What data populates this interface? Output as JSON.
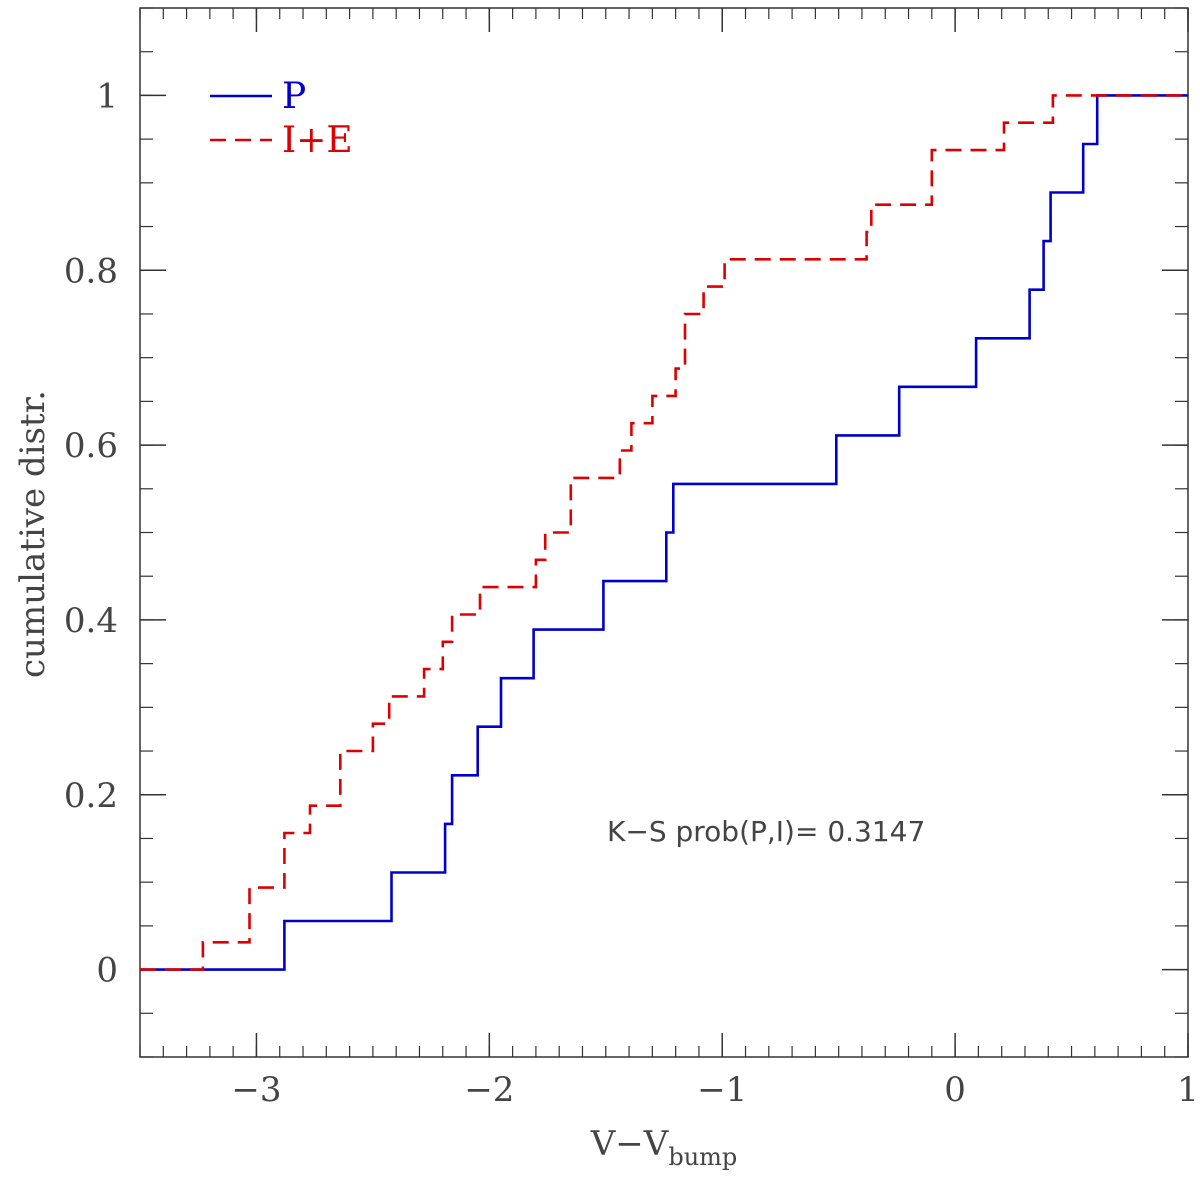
{
  "chart_data": {
    "type": "line",
    "step": true,
    "title": "",
    "xlabel": {
      "main": "V−V",
      "sub": "bump"
    },
    "ylabel": "cumulative distr.",
    "xlim": [
      -3.5,
      1
    ],
    "ylim": [
      -0.1,
      1.1
    ],
    "xticks": [
      {
        "value": -3,
        "label": "−3"
      },
      {
        "value": -2,
        "label": "−2"
      },
      {
        "value": -1,
        "label": "−1"
      },
      {
        "value": 0,
        "label": "0"
      },
      {
        "value": 1,
        "label": "1"
      }
    ],
    "yticks": [
      {
        "value": 0,
        "label": "0"
      },
      {
        "value": 0.2,
        "label": "0.2"
      },
      {
        "value": 0.4,
        "label": "0.4"
      },
      {
        "value": 0.6,
        "label": "0.6"
      },
      {
        "value": 0.8,
        "label": "0.8"
      },
      {
        "value": 1,
        "label": "1"
      }
    ],
    "xminor_step": 0.1,
    "yminor_step": 0.05,
    "grid": false,
    "legend_position": "top-left",
    "annotation": "K−S prob(P,I)= 0.3147",
    "series": [
      {
        "name": "P",
        "color": "#0000cc",
        "dash": "solid",
        "x": [
          -3.5,
          -2.88,
          -2.88,
          -2.42,
          -2.42,
          -2.19,
          -2.19,
          -2.16,
          -2.16,
          -2.05,
          -2.05,
          -1.95,
          -1.95,
          -1.81,
          -1.81,
          -1.51,
          -1.51,
          -1.24,
          -1.24,
          -1.21,
          -1.21,
          -0.51,
          -0.51,
          -0.24,
          -0.24,
          0.09,
          0.09,
          0.32,
          0.32,
          0.38,
          0.38,
          0.41,
          0.41,
          0.55,
          0.55,
          0.61,
          0.61,
          1.0
        ],
        "y": [
          0,
          0,
          0.0556,
          0.0556,
          0.1111,
          0.1111,
          0.1667,
          0.1667,
          0.2222,
          0.2222,
          0.2778,
          0.2778,
          0.3333,
          0.3333,
          0.3889,
          0.3889,
          0.4444,
          0.4444,
          0.5,
          0.5,
          0.5556,
          0.5556,
          0.6111,
          0.6111,
          0.6667,
          0.6667,
          0.7222,
          0.7222,
          0.7778,
          0.7778,
          0.8333,
          0.8333,
          0.8889,
          0.8889,
          0.9444,
          0.9444,
          1.0,
          1.0
        ]
      },
      {
        "name": "I+E",
        "color": "#dd0000",
        "dash": "dashed",
        "x": [
          -3.5,
          -3.23,
          -3.23,
          -3.03,
          -3.03,
          -2.88,
          -2.88,
          -2.77,
          -2.77,
          -2.64,
          -2.64,
          -2.5,
          -2.5,
          -2.43,
          -2.43,
          -2.28,
          -2.28,
          -2.2,
          -2.2,
          -2.16,
          -2.16,
          -2.04,
          -2.04,
          -1.8,
          -1.8,
          -1.76,
          -1.76,
          -1.65,
          -1.65,
          -1.44,
          -1.44,
          -1.39,
          -1.39,
          -1.3,
          -1.3,
          -1.2,
          -1.2,
          -1.16,
          -1.16,
          -1.08,
          -1.08,
          -0.99,
          -0.99,
          -0.38,
          -0.38,
          -0.36,
          -0.36,
          -0.1,
          -0.1,
          0.21,
          0.21,
          0.42,
          0.42,
          1.0
        ],
        "y": [
          0,
          0,
          0.03125,
          0.03125,
          0.09375,
          0.09375,
          0.15625,
          0.15625,
          0.1875,
          0.1875,
          0.25,
          0.25,
          0.28125,
          0.28125,
          0.3125,
          0.3125,
          0.34375,
          0.34375,
          0.375,
          0.375,
          0.40625,
          0.40625,
          0.4375,
          0.4375,
          0.46875,
          0.46875,
          0.5,
          0.5,
          0.5625,
          0.5625,
          0.59375,
          0.59375,
          0.625,
          0.625,
          0.65625,
          0.65625,
          0.6875,
          0.6875,
          0.75,
          0.75,
          0.78125,
          0.78125,
          0.8125,
          0.8125,
          0.84375,
          0.84375,
          0.875,
          0.875,
          0.9375,
          0.9375,
          0.96875,
          0.96875,
          1.0,
          1.0
        ]
      }
    ]
  }
}
